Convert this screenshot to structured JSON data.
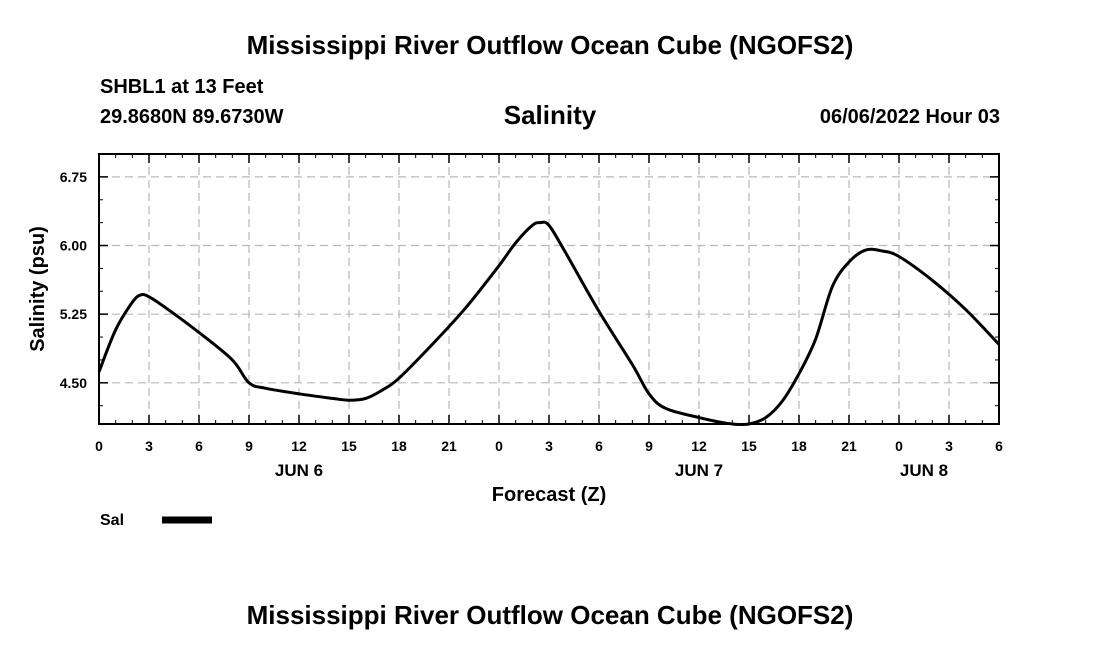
{
  "header": {
    "title": "Mississippi River Outflow Ocean Cube (NGOFS2)",
    "station": "SHBL1 at 13 Feet",
    "coords": "29.8680N  89.6730W",
    "variable": "Salinity",
    "datetime": "06/06/2022 Hour 03"
  },
  "footer": {
    "title": "Mississippi River Outflow Ocean Cube (NGOFS2)"
  },
  "legend": {
    "label": "Sal"
  },
  "chart_data": {
    "type": "line",
    "title": "Salinity",
    "xlabel": "Forecast (Z)",
    "ylabel": "Salinity (psu)",
    "xlim": [
      0,
      54
    ],
    "ylim": [
      4.05,
      7.0
    ],
    "grid": true,
    "x_ticks": [
      {
        "value": 0,
        "label": "0"
      },
      {
        "value": 3,
        "label": "3"
      },
      {
        "value": 6,
        "label": "6"
      },
      {
        "value": 9,
        "label": "9"
      },
      {
        "value": 12,
        "label": "12"
      },
      {
        "value": 15,
        "label": "15"
      },
      {
        "value": 18,
        "label": "18"
      },
      {
        "value": 21,
        "label": "21"
      },
      {
        "value": 24,
        "label": "0"
      },
      {
        "value": 27,
        "label": "3"
      },
      {
        "value": 30,
        "label": "6"
      },
      {
        "value": 33,
        "label": "9"
      },
      {
        "value": 36,
        "label": "12"
      },
      {
        "value": 39,
        "label": "15"
      },
      {
        "value": 42,
        "label": "18"
      },
      {
        "value": 45,
        "label": "21"
      },
      {
        "value": 48,
        "label": "0"
      },
      {
        "value": 51,
        "label": "3"
      },
      {
        "value": 54,
        "label": "6"
      }
    ],
    "day_labels": [
      {
        "value": 12,
        "label": "JUN 6"
      },
      {
        "value": 36,
        "label": "JUN 7"
      },
      {
        "value": 49.5,
        "label": "JUN 8"
      }
    ],
    "y_ticks": [
      {
        "value": 4.5,
        "label": "4.50"
      },
      {
        "value": 5.25,
        "label": "5.25"
      },
      {
        "value": 6.0,
        "label": "6.00"
      },
      {
        "value": 6.75,
        "label": "6.75"
      }
    ],
    "series": [
      {
        "name": "Sal",
        "x": [
          0,
          1,
          2,
          2.5,
          3,
          4,
          6,
          8,
          9,
          10,
          12,
          14,
          15,
          16,
          17,
          18,
          20,
          22,
          24,
          25,
          26,
          26.5,
          27,
          28,
          30,
          32,
          33,
          34,
          36,
          37,
          38,
          39,
          40,
          41,
          42,
          43,
          44,
          45,
          46,
          47,
          48,
          50,
          52,
          54
        ],
        "values": [
          4.62,
          5.08,
          5.38,
          5.46,
          5.44,
          5.32,
          5.05,
          4.75,
          4.5,
          4.44,
          4.38,
          4.33,
          4.31,
          4.33,
          4.42,
          4.55,
          4.92,
          5.32,
          5.78,
          6.03,
          6.22,
          6.25,
          6.22,
          5.92,
          5.28,
          4.7,
          4.38,
          4.22,
          4.12,
          4.08,
          4.05,
          4.05,
          4.12,
          4.3,
          4.6,
          4.98,
          5.55,
          5.82,
          5.95,
          5.94,
          5.88,
          5.62,
          5.3,
          4.92
        ]
      }
    ]
  }
}
